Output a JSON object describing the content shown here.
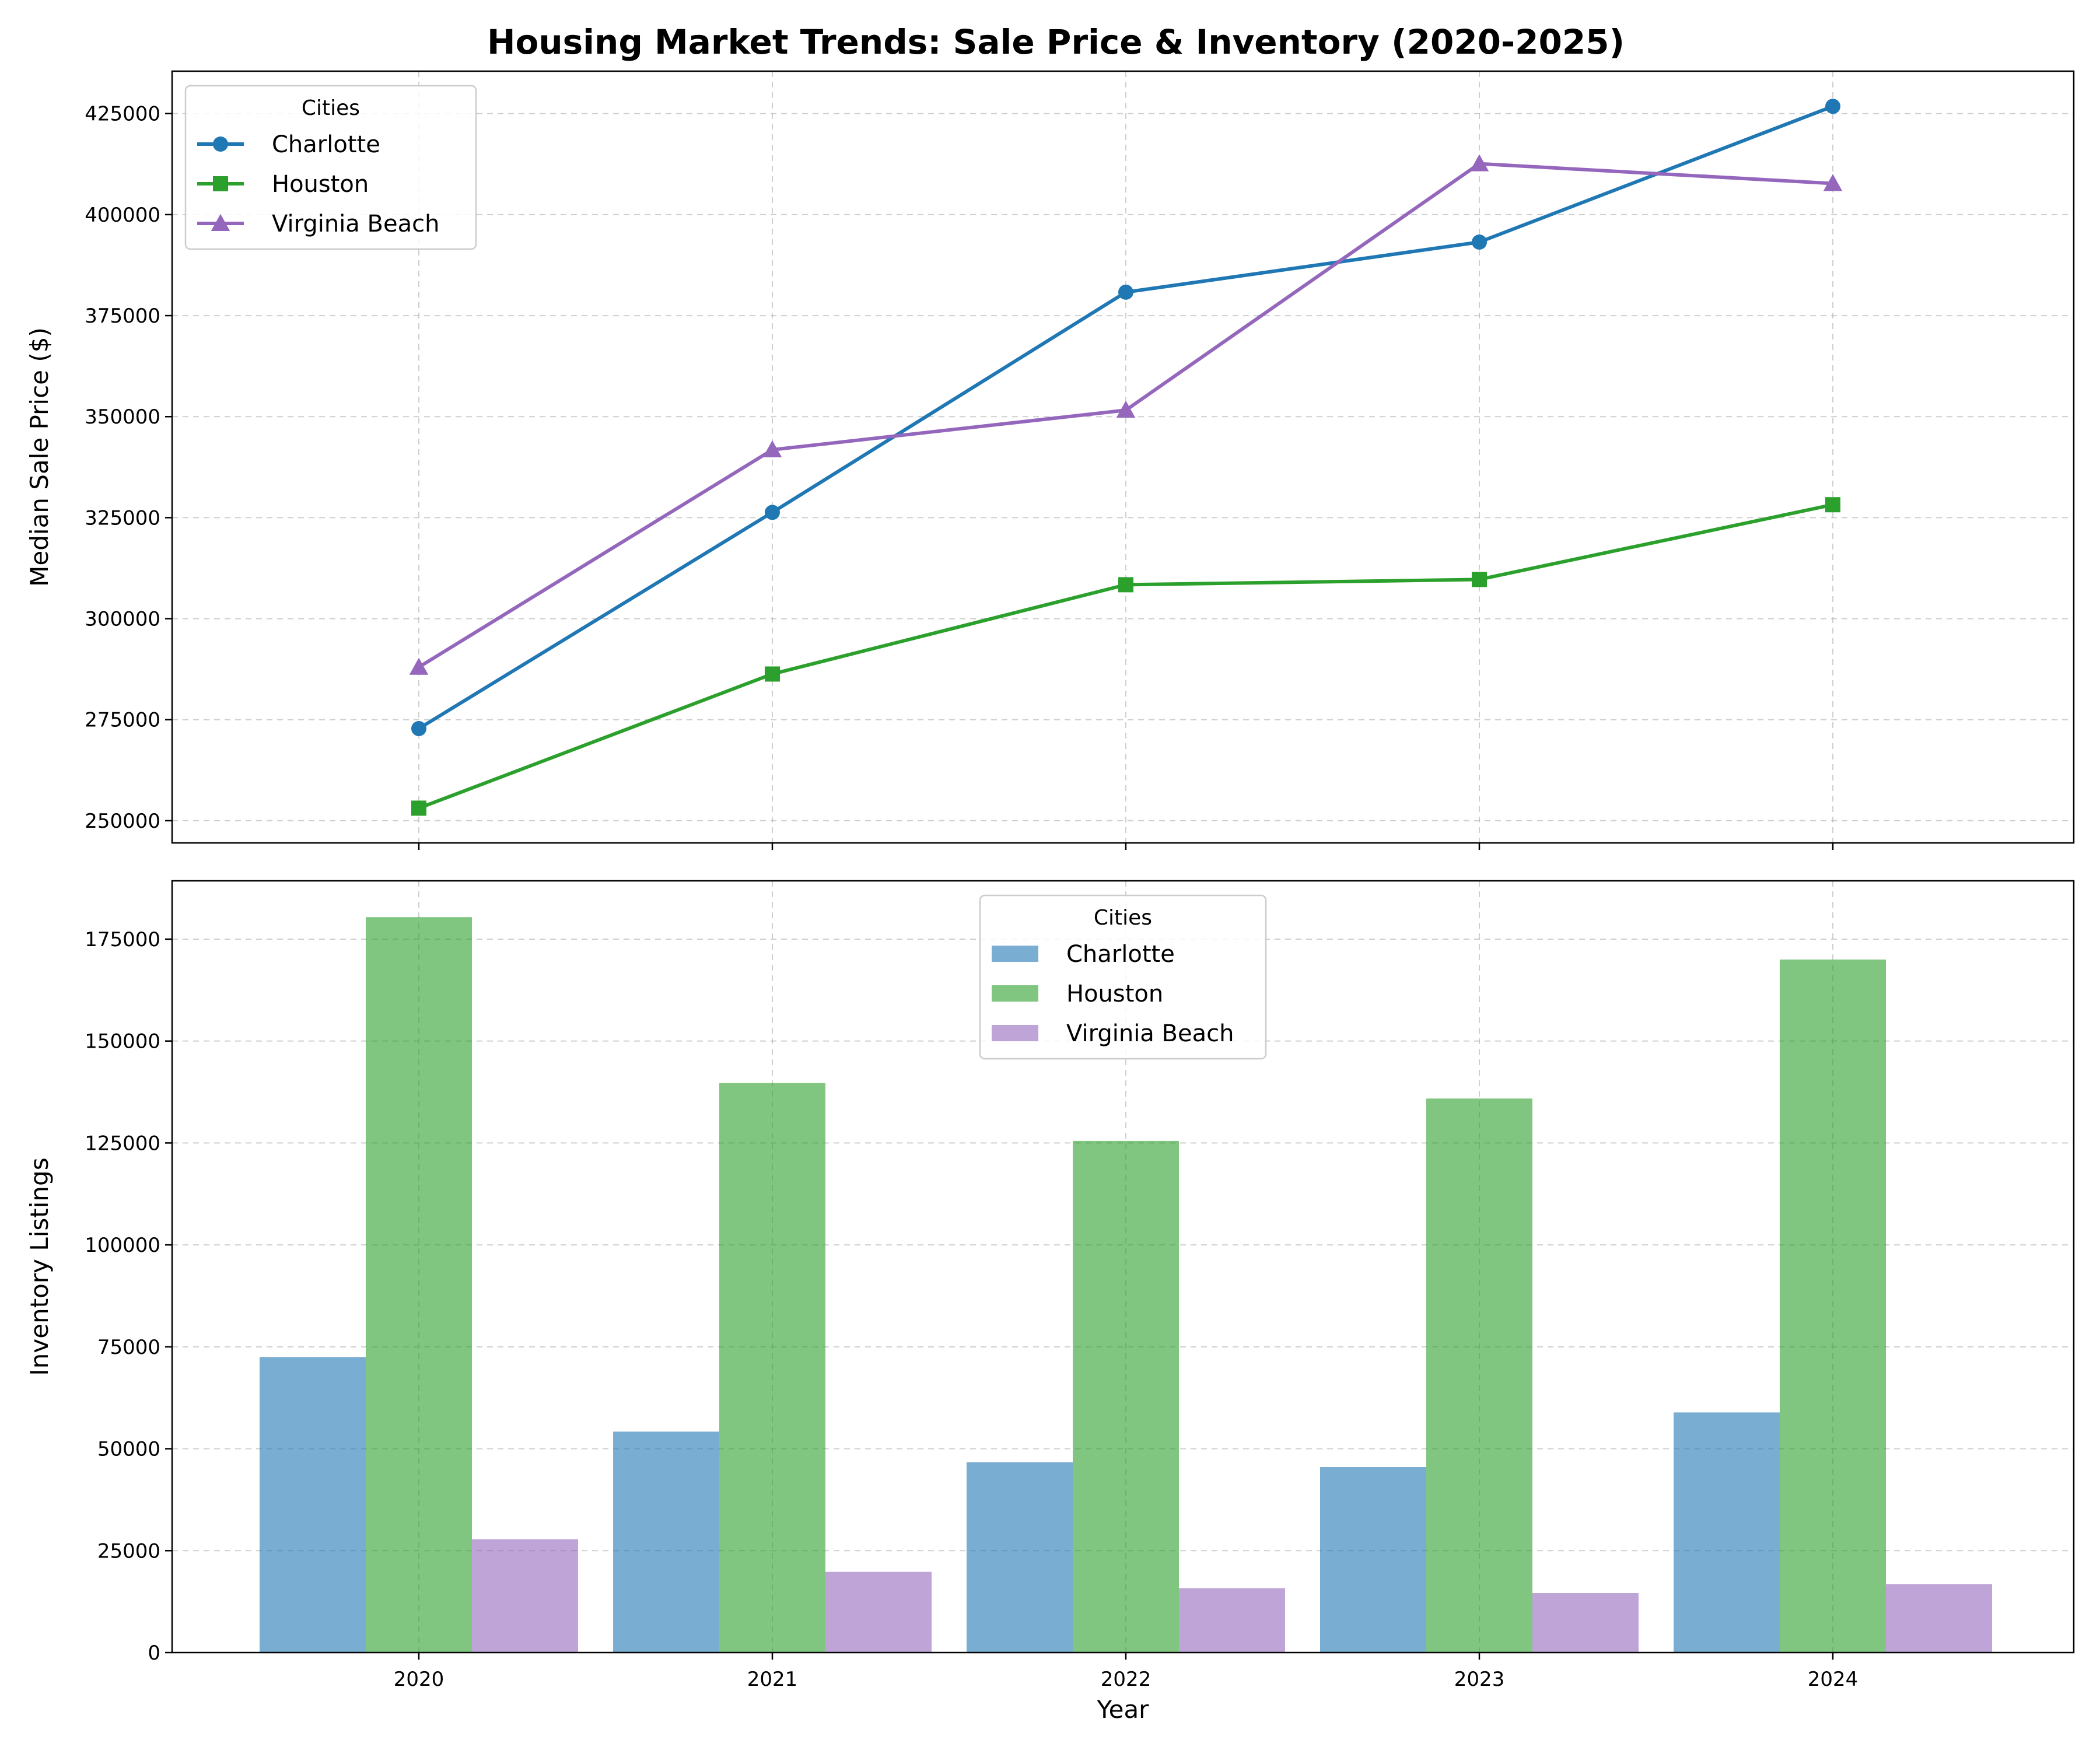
{
  "chart_data": {
    "title": "Housing Market Trends: Sale Price & Inventory (2020-2025)",
    "xlabel": "Year",
    "categories": [
      "2020",
      "2021",
      "2022",
      "2023",
      "2024"
    ],
    "colors": {
      "Charlotte": "#1f77b4",
      "Houston": "#2ca02c",
      "Virginia Beach": "#9467bd"
    },
    "grid": true,
    "panels": [
      {
        "type": "line",
        "ylabel": "Median Sale Price ($)",
        "ylim": [
          244500,
          435500
        ],
        "yticks": [
          250000,
          275000,
          300000,
          325000,
          350000,
          375000,
          400000,
          425000
        ],
        "legend": {
          "title": "Cities",
          "placement": "top-left"
        },
        "series": [
          {
            "name": "Charlotte",
            "marker": "circle",
            "values": [
              272800,
              326300,
              380800,
              393200,
              426800
            ]
          },
          {
            "name": "Houston",
            "marker": "square",
            "values": [
              253100,
              286300,
              308400,
              309700,
              328200
            ]
          },
          {
            "name": "Virginia Beach",
            "marker": "triangle",
            "values": [
              288000,
              341800,
              351600,
              412600,
              407700
            ]
          }
        ]
      },
      {
        "type": "bar",
        "ylabel": "Inventory Listings",
        "ylim": [
          0,
          189300
        ],
        "yticks": [
          0,
          25000,
          50000,
          75000,
          100000,
          125000,
          150000,
          175000
        ],
        "legend": {
          "title": "Cities",
          "placement": "top-center"
        },
        "series": [
          {
            "name": "Charlotte",
            "values": [
              72500,
              54200,
              46700,
              45500,
              58900
            ]
          },
          {
            "name": "Houston",
            "values": [
              180400,
              139700,
              125500,
              135900,
              170000
            ]
          },
          {
            "name": "Virginia Beach",
            "values": [
              27800,
              19800,
              15800,
              14600,
              16800
            ]
          }
        ]
      }
    ]
  }
}
